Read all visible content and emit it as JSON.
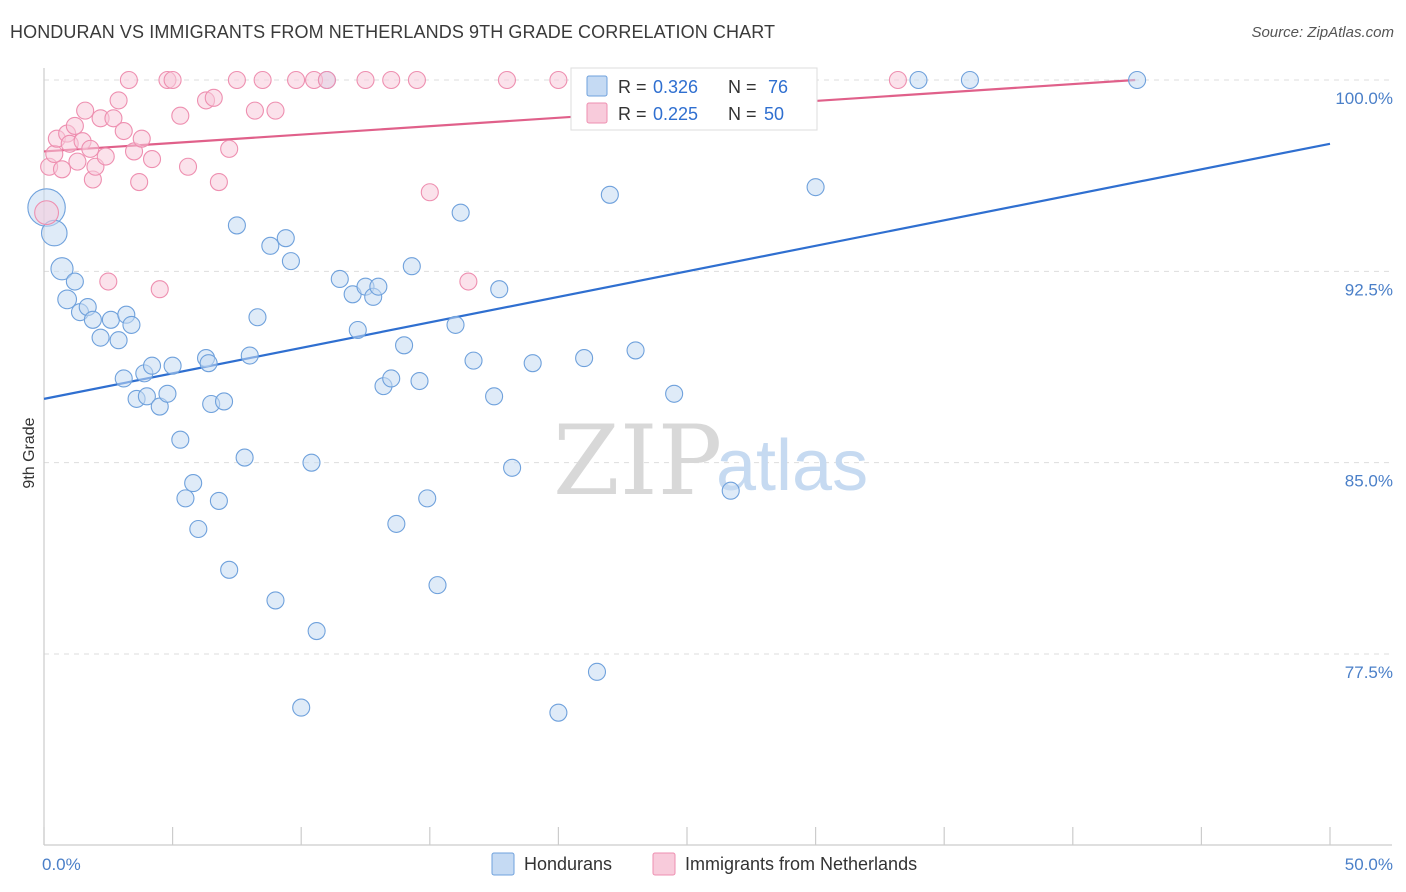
{
  "header": {
    "title": "HONDURAN VS IMMIGRANTS FROM NETHERLANDS 9TH GRADE CORRELATION CHART",
    "source": "Source: ZipAtlas.com"
  },
  "watermark": {
    "zip": "ZIP",
    "atlas": "atlas"
  },
  "colors": {
    "blue": "#6fa1dc",
    "blue_fill": "#c5daf3",
    "blue_line": "#2f6fd0",
    "pink": "#ee8fb0",
    "pink_fill": "#f8cbdb",
    "pink_line": "#e0608a",
    "grid": "#dddddd",
    "axis": "#cccccc",
    "tick_text": "#4a7fc8"
  },
  "legend": {
    "r_label": "R =",
    "n_label": "N =",
    "blue": {
      "r": "0.326",
      "n": "76"
    },
    "pink": {
      "r": "0.225",
      "n": "50"
    }
  },
  "bottom_legend": [
    "Hondurans",
    "Immigrants from Netherlands"
  ],
  "chart_data": {
    "type": "scatter",
    "title": "HONDURAN VS IMMIGRANTS FROM NETHERLANDS 9TH GRADE CORRELATION CHART",
    "xlabel": "",
    "ylabel": "9th Grade",
    "xlim": [
      0,
      50
    ],
    "ylim": [
      70,
      100.5
    ],
    "x_tick_labels": [
      {
        "value": 0,
        "label": "0.0%"
      },
      {
        "value": 50,
        "label": "50.0%"
      }
    ],
    "x_minor_ticks": [
      0,
      5,
      10,
      15,
      20,
      25,
      30,
      35,
      40,
      45,
      50
    ],
    "y_ticks": [
      {
        "value": 100,
        "label": "100.0%"
      },
      {
        "value": 92.5,
        "label": "92.5%"
      },
      {
        "value": 85,
        "label": "85.0%"
      },
      {
        "value": 77.5,
        "label": "77.5%"
      }
    ],
    "grid": true,
    "legend_position": "top-center",
    "series": [
      {
        "name": "Hondurans",
        "color": "#6fa1dc",
        "trend": {
          "x": [
            0,
            50
          ],
          "y": [
            87.5,
            97.5
          ]
        },
        "points": [
          [
            0.1,
            95.0,
            2.2
          ],
          [
            0.4,
            94.0,
            1.5
          ],
          [
            0.7,
            92.6,
            1.3
          ],
          [
            0.9,
            91.4,
            1.1
          ],
          [
            1.2,
            92.1,
            1.0
          ],
          [
            1.4,
            90.9,
            1.0
          ],
          [
            1.7,
            91.1,
            1.0
          ],
          [
            1.9,
            90.6,
            1.0
          ],
          [
            2.2,
            89.9,
            1.0
          ],
          [
            2.6,
            90.6,
            1.0
          ],
          [
            2.9,
            89.8,
            1.0
          ],
          [
            3.1,
            88.3,
            1.0
          ],
          [
            3.2,
            90.8,
            1.0
          ],
          [
            3.4,
            90.4,
            1.0
          ],
          [
            3.6,
            87.5,
            1.0
          ],
          [
            3.9,
            88.5,
            1.0
          ],
          [
            4.0,
            87.6,
            1.0
          ],
          [
            4.2,
            88.8,
            1.0
          ],
          [
            4.5,
            87.2,
            1.0
          ],
          [
            4.8,
            87.7,
            1.0
          ],
          [
            5.0,
            88.8,
            1.0
          ],
          [
            5.3,
            85.9,
            1.0
          ],
          [
            5.5,
            83.6,
            1.0
          ],
          [
            5.8,
            84.2,
            1.0
          ],
          [
            6.0,
            82.4,
            1.0
          ],
          [
            6.3,
            89.1,
            1.0
          ],
          [
            6.4,
            88.9,
            1.0
          ],
          [
            6.5,
            87.3,
            1.0
          ],
          [
            6.8,
            83.5,
            1.0
          ],
          [
            7.0,
            87.4,
            1.0
          ],
          [
            7.2,
            80.8,
            1.0
          ],
          [
            7.5,
            94.3,
            1.0
          ],
          [
            7.8,
            85.2,
            1.0
          ],
          [
            8.0,
            89.2,
            1.0
          ],
          [
            8.3,
            90.7,
            1.0
          ],
          [
            8.8,
            93.5,
            1.0
          ],
          [
            9.0,
            79.6,
            1.0
          ],
          [
            9.4,
            93.8,
            1.0
          ],
          [
            9.6,
            92.9,
            1.0
          ],
          [
            10.0,
            75.4,
            1.0
          ],
          [
            10.4,
            85.0,
            1.0
          ],
          [
            10.6,
            78.4,
            1.0
          ],
          [
            11.0,
            100.0,
            1.0
          ],
          [
            11.5,
            92.2,
            1.0
          ],
          [
            12.0,
            91.6,
            1.0
          ],
          [
            12.2,
            90.2,
            1.0
          ],
          [
            12.5,
            91.9,
            1.0
          ],
          [
            12.8,
            91.5,
            1.0
          ],
          [
            13.0,
            91.9,
            1.0
          ],
          [
            13.2,
            88.0,
            1.0
          ],
          [
            13.5,
            88.3,
            1.0
          ],
          [
            13.7,
            82.6,
            1.0
          ],
          [
            14.0,
            89.6,
            1.0
          ],
          [
            14.3,
            92.7,
            1.0
          ],
          [
            14.6,
            88.2,
            1.0
          ],
          [
            14.9,
            83.6,
            1.0
          ],
          [
            15.3,
            80.2,
            1.0
          ],
          [
            16.0,
            90.4,
            1.0
          ],
          [
            16.2,
            94.8,
            1.0
          ],
          [
            16.7,
            89.0,
            1.0
          ],
          [
            17.5,
            87.6,
            1.0
          ],
          [
            17.7,
            91.8,
            1.0
          ],
          [
            18.2,
            84.8,
            1.0
          ],
          [
            19.0,
            88.9,
            1.0
          ],
          [
            20.0,
            75.2,
            1.0
          ],
          [
            21.0,
            89.1,
            1.0
          ],
          [
            21.5,
            76.8,
            1.0
          ],
          [
            22.0,
            95.5,
            1.0
          ],
          [
            23.0,
            89.4,
            1.0
          ],
          [
            24.5,
            87.7,
            1.0
          ],
          [
            25.3,
            100.0,
            1.0
          ],
          [
            26.7,
            83.9,
            1.0
          ],
          [
            30.0,
            95.8,
            1.0
          ],
          [
            34.0,
            100.0,
            1.0
          ],
          [
            36.0,
            100.0,
            1.0
          ],
          [
            42.5,
            100.0,
            1.0
          ]
        ]
      },
      {
        "name": "Immigrants from Netherlands",
        "color": "#ee8fb0",
        "trend": {
          "x": [
            0,
            50
          ],
          "y": [
            97.2,
            100.5
          ]
        },
        "points": [
          [
            0.1,
            94.8,
            1.4
          ],
          [
            0.2,
            96.6,
            1.0
          ],
          [
            0.4,
            97.1,
            1.0
          ],
          [
            0.5,
            97.7,
            1.0
          ],
          [
            0.7,
            96.5,
            1.0
          ],
          [
            0.9,
            97.9,
            1.0
          ],
          [
            1.0,
            97.5,
            1.0
          ],
          [
            1.2,
            98.2,
            1.0
          ],
          [
            1.3,
            96.8,
            1.0
          ],
          [
            1.5,
            97.6,
            1.0
          ],
          [
            1.6,
            98.8,
            1.0
          ],
          [
            1.8,
            97.3,
            1.0
          ],
          [
            1.9,
            96.1,
            1.0
          ],
          [
            2.0,
            96.6,
            1.0
          ],
          [
            2.2,
            98.5,
            1.0
          ],
          [
            2.4,
            97.0,
            1.0
          ],
          [
            2.5,
            92.1,
            1.0
          ],
          [
            2.7,
            98.5,
            1.0
          ],
          [
            2.9,
            99.2,
            1.0
          ],
          [
            3.1,
            98.0,
            1.0
          ],
          [
            3.3,
            100.0,
            1.0
          ],
          [
            3.5,
            97.2,
            1.0
          ],
          [
            3.7,
            96.0,
            1.0
          ],
          [
            3.8,
            97.7,
            1.0
          ],
          [
            4.2,
            96.9,
            1.0
          ],
          [
            4.5,
            91.8,
            1.0
          ],
          [
            4.8,
            100.0,
            1.0
          ],
          [
            5.0,
            100.0,
            1.0
          ],
          [
            5.3,
            98.6,
            1.0
          ],
          [
            5.6,
            96.6,
            1.0
          ],
          [
            6.3,
            99.2,
            1.0
          ],
          [
            6.6,
            99.3,
            1.0
          ],
          [
            6.8,
            96.0,
            1.0
          ],
          [
            7.2,
            97.3,
            1.0
          ],
          [
            7.5,
            100.0,
            1.0
          ],
          [
            8.2,
            98.8,
            1.0
          ],
          [
            8.5,
            100.0,
            1.0
          ],
          [
            9.0,
            98.8,
            1.0
          ],
          [
            9.8,
            100.0,
            1.0
          ],
          [
            10.5,
            100.0,
            1.0
          ],
          [
            11.0,
            100.0,
            1.0
          ],
          [
            12.5,
            100.0,
            1.0
          ],
          [
            13.5,
            100.0,
            1.0
          ],
          [
            14.5,
            100.0,
            1.0
          ],
          [
            15.0,
            95.6,
            1.0
          ],
          [
            16.5,
            92.1,
            1.0
          ],
          [
            18.0,
            100.0,
            1.0
          ],
          [
            20.0,
            100.0,
            1.0
          ],
          [
            27.5,
            100.0,
            1.0
          ],
          [
            33.2,
            100.0,
            1.0
          ]
        ]
      }
    ]
  }
}
